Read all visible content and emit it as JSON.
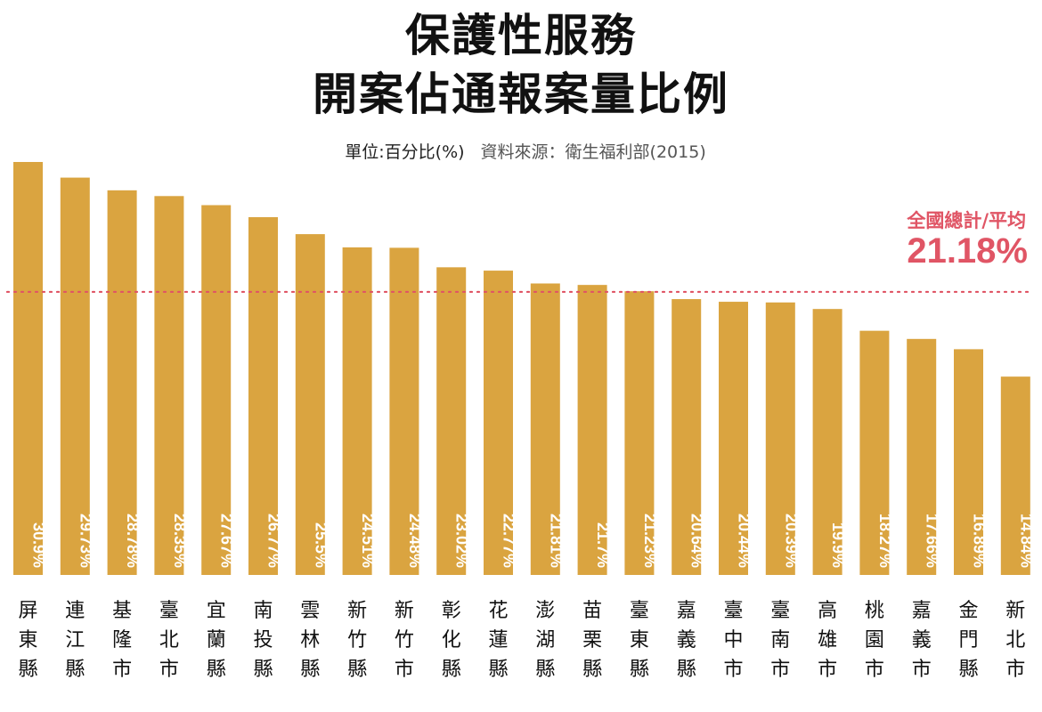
{
  "title_line1": "保護性服務",
  "title_line2": "開案佔通報案量比例",
  "unit_text": "單位:百分比(%)",
  "source_text": "資料來源：衛生福利部(2015)",
  "average": {
    "label": "全國總計/平均",
    "value": 21.18,
    "value_text": "21.18%",
    "color": "#e05565"
  },
  "chart_data": {
    "type": "bar",
    "categories": [
      "屏東縣",
      "連江縣",
      "基隆市",
      "臺北市",
      "宜蘭縣",
      "南投縣",
      "雲林縣",
      "新竹縣",
      "新竹市",
      "彰化縣",
      "花蓮縣",
      "澎湖縣",
      "苗栗縣",
      "臺東縣",
      "嘉義縣",
      "臺中市",
      "臺南市",
      "高雄市",
      "桃園市",
      "嘉義市",
      "金門縣",
      "新北市"
    ],
    "values": [
      30.9,
      29.73,
      28.78,
      28.35,
      27.67,
      26.77,
      25.5,
      24.51,
      24.48,
      23.02,
      22.77,
      21.81,
      21.7,
      21.23,
      20.64,
      20.44,
      20.39,
      19.9,
      18.27,
      17.66,
      16.89,
      14.84
    ],
    "value_labels": [
      "30.9%",
      "29.73%",
      "28.78%",
      "28.35%",
      "27.67%",
      "26.77%",
      "25.5%",
      "24.51%",
      "24.48%",
      "23.02%",
      "22.77%",
      "21.81%",
      "21.7%",
      "21.23%",
      "20.64%",
      "20.44%",
      "20.39%",
      "19.9%",
      "18.27%",
      "17.66%",
      "16.89%",
      "14.84%"
    ],
    "bar_color": "#daa440",
    "ylim": [
      0,
      30.9
    ],
    "grid": false
  }
}
